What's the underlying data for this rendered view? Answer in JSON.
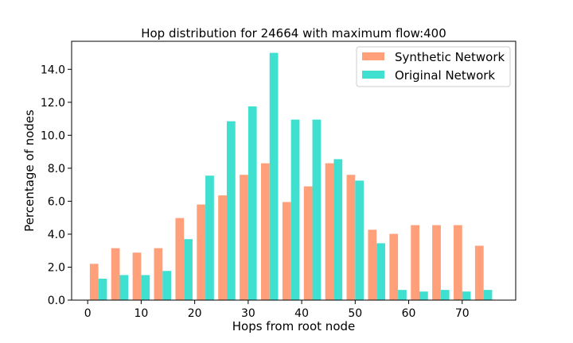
{
  "chart_data": {
    "type": "bar",
    "title": "Hop distribution for 24664 with maximum flow:400",
    "xlabel": "Hops from root node",
    "ylabel": "Percentage of nodes",
    "xlim": [
      -3,
      80
    ],
    "ylim": [
      0,
      15.7
    ],
    "xticks": [
      0,
      10,
      20,
      30,
      40,
      50,
      60,
      70
    ],
    "yticks": [
      0.0,
      2.0,
      4.0,
      6.0,
      8.0,
      10.0,
      12.0,
      14.0
    ],
    "legend_position": "upper right",
    "x": [
      2,
      6,
      10,
      14,
      18,
      22,
      26,
      30,
      34,
      38,
      42,
      46,
      50,
      54,
      58,
      62,
      66,
      70,
      74
    ],
    "series": [
      {
        "name": "Synthetic Network",
        "color": "#FFA07A",
        "values": [
          2.2,
          3.15,
          2.88,
          3.15,
          4.98,
          5.8,
          6.35,
          7.6,
          8.3,
          5.95,
          6.9,
          8.3,
          7.6,
          4.27,
          4.02,
          4.55,
          4.55,
          4.55,
          3.3
        ]
      },
      {
        "name": "Original Network",
        "color": "#40E0D0",
        "values": [
          1.3,
          1.52,
          1.52,
          1.77,
          3.7,
          7.55,
          10.85,
          11.75,
          15.0,
          10.95,
          10.95,
          8.55,
          7.25,
          3.45,
          0.62,
          0.52,
          0.62,
          0.52,
          0.62
        ]
      }
    ]
  }
}
